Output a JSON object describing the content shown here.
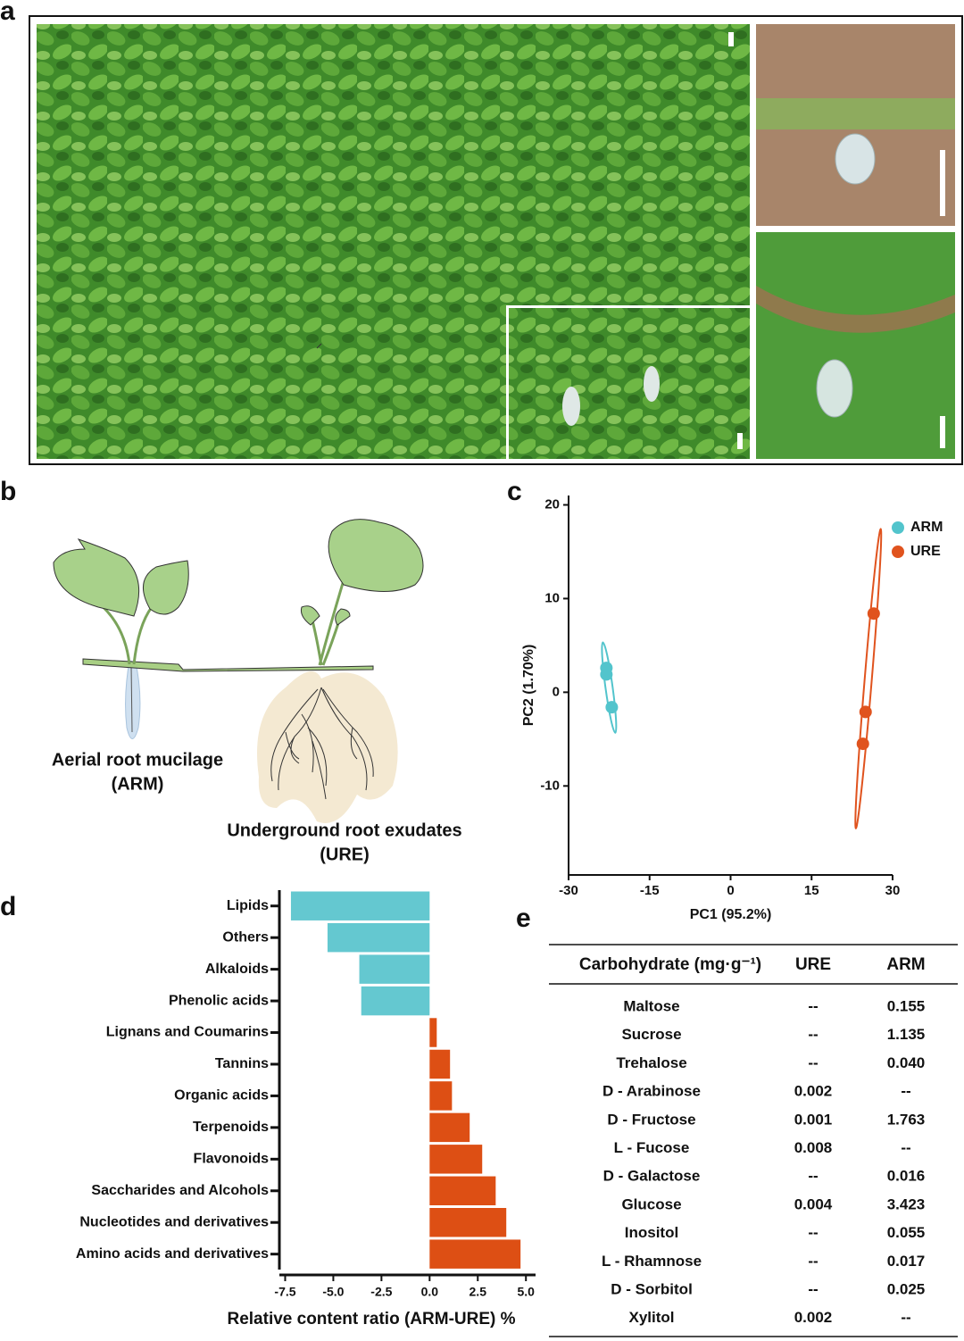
{
  "panel_labels": [
    "a",
    "b",
    "c",
    "d",
    "e"
  ],
  "diagram": {
    "left_label": "Aerial root mucilage",
    "left_abbr": "(ARM)",
    "right_label": "Underground root exudates",
    "right_abbr": "(URE)"
  },
  "chart_data": [
    {
      "type": "scatter",
      "xlabel": "PC1 (95.2%)",
      "ylabel": "PC2 (1.70%)",
      "xlim": [
        -30,
        30
      ],
      "xticks": [
        -30,
        -15,
        0,
        15,
        30
      ],
      "ylim": [
        -19.5,
        21
      ],
      "yticks": [
        -10,
        0,
        10,
        20
      ],
      "legend": "upper right",
      "series": [
        {
          "name": "ARM",
          "color": "#52c4cc",
          "x": [
            -23,
            -23,
            -22
          ],
          "values": [
            2.6,
            1.9,
            -1.6
          ]
        },
        {
          "name": "URE",
          "color": "#e0531e",
          "x": [
            26.5,
            25,
            24.5
          ],
          "values": [
            8.4,
            -2.1,
            -5.5
          ]
        }
      ]
    },
    {
      "type": "barh",
      "xlabel": "Relative content ratio (ARM-URE) %",
      "categories": [
        "Lipids",
        "Others",
        "Alkaloids",
        "Phenolic acids",
        "Lignans and Coumarins",
        "Tannins",
        "Organic acids",
        "Terpenoids",
        "Flavonoids",
        "Saccharides and Alcohols",
        "Nucleotides and derivatives",
        "Amino acids and derivatives"
      ],
      "values": [
        -7.2,
        -5.3,
        -3.65,
        -3.55,
        0.37,
        1.06,
        1.16,
        2.08,
        2.73,
        3.43,
        3.98,
        4.72
      ],
      "colors": [
        "#64c8d0",
        "#64c8d0",
        "#64c8d0",
        "#64c8d0",
        "#dd4f14",
        "#dd4f14",
        "#dd4f14",
        "#dd4f14",
        "#dd4f14",
        "#dd4f14",
        "#dd4f14",
        "#dd4f14"
      ],
      "xlim": [
        -7.8,
        5.5
      ],
      "xticks": [
        {
          "value": -7.5,
          "label": "-7.5"
        },
        {
          "value": -5,
          "label": "-5.0"
        },
        {
          "value": -2.5,
          "label": "-2.5"
        },
        {
          "value": 0,
          "label": "0.0"
        },
        {
          "value": 2.5,
          "label": "2.5"
        },
        {
          "value": 5,
          "label": "5.0"
        }
      ]
    }
  ],
  "table": {
    "header": [
      "Carbohydrate (mg·g⁻¹)",
      "URE",
      "ARM"
    ],
    "rows": [
      [
        "Maltose",
        "--",
        "0.155"
      ],
      [
        "Sucrose",
        "--",
        "1.135"
      ],
      [
        "Trehalose",
        "--",
        "0.040"
      ],
      [
        "D - Arabinose",
        "0.002",
        "--"
      ],
      [
        "D - Fructose",
        "0.001",
        "1.763"
      ],
      [
        "L - Fucose",
        "0.008",
        "--"
      ],
      [
        "D - Galactose",
        "--",
        "0.016"
      ],
      [
        "Glucose",
        "0.004",
        "3.423"
      ],
      [
        "Inositol",
        "--",
        "0.055"
      ],
      [
        "L - Rhamnose",
        "--",
        "0.017"
      ],
      [
        "D - Sorbitol",
        "--",
        "0.025"
      ],
      [
        "Xylitol",
        "0.002",
        "--"
      ]
    ]
  }
}
